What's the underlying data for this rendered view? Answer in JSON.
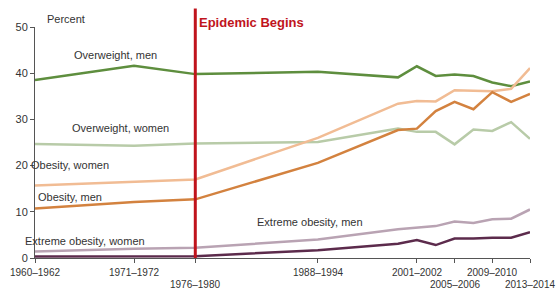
{
  "chart_data": {
    "type": "line",
    "y_label": "Percent",
    "x": [
      1961,
      1971.5,
      1978,
      1991,
      1999.5,
      2001.5,
      2003.5,
      2005.5,
      2007.5,
      2009.5,
      2011.5,
      2013.5
    ],
    "xlim": [
      1961,
      2013.5
    ],
    "xticks": [
      {
        "value": 1961,
        "label": "1960–1962"
      },
      {
        "value": 1971.5,
        "label": "1971–1972"
      },
      {
        "value": 1978,
        "label": "1976–1980"
      },
      {
        "value": 1991,
        "label": "1988–1994"
      },
      {
        "value": 2001.5,
        "label": "2001–2002"
      },
      {
        "value": 2005.5,
        "label": "2005–2006"
      },
      {
        "value": 2009.5,
        "label": "2009–2010"
      },
      {
        "value": 2013.5,
        "label": "2013–2014"
      }
    ],
    "ylim": [
      0,
      50
    ],
    "yticks": [
      0,
      10,
      20,
      30,
      40,
      50
    ],
    "grid": false,
    "series": [
      {
        "name": "Overweight, men",
        "color": "#5e8e3e",
        "values": [
          38.5,
          41.6,
          39.8,
          40.3,
          39.1,
          41.5,
          39.4,
          39.7,
          39.4,
          38.0,
          37.2,
          38.2
        ]
      },
      {
        "name": "Overweight, women",
        "color": "#b8cba8",
        "values": [
          24.7,
          24.3,
          24.8,
          25.1,
          28.0,
          27.3,
          27.3,
          24.6,
          27.8,
          27.5,
          29.4,
          25.8
        ]
      },
      {
        "name": "Obesity, women",
        "color": "#f1bc94",
        "values": [
          15.7,
          16.6,
          17.0,
          26.0,
          33.4,
          34.0,
          33.9,
          36.3,
          36.2,
          36.1,
          36.6,
          41.1
        ]
      },
      {
        "name": "Obesity, men",
        "color": "#d3823f",
        "values": [
          10.7,
          12.1,
          12.7,
          20.6,
          27.7,
          28.0,
          31.8,
          33.8,
          32.2,
          35.9,
          33.8,
          35.5
        ]
      },
      {
        "name": "Extreme obesity, men",
        "color": "#5c2b4c",
        "values": [
          0.3,
          0.4,
          0.4,
          1.7,
          3.1,
          3.9,
          2.8,
          4.2,
          4.2,
          4.4,
          4.4,
          5.6
        ]
      },
      {
        "name": "Extreme obesity, women",
        "color": "#b9a3b3",
        "values": [
          1.4,
          2.0,
          2.2,
          4.0,
          6.2,
          6.5,
          6.9,
          7.9,
          7.6,
          8.4,
          8.5,
          10.5
        ]
      }
    ],
    "annotations": [
      {
        "text": "Epidemic Begins",
        "x": 1978,
        "color": "#c0141c"
      }
    ]
  }
}
